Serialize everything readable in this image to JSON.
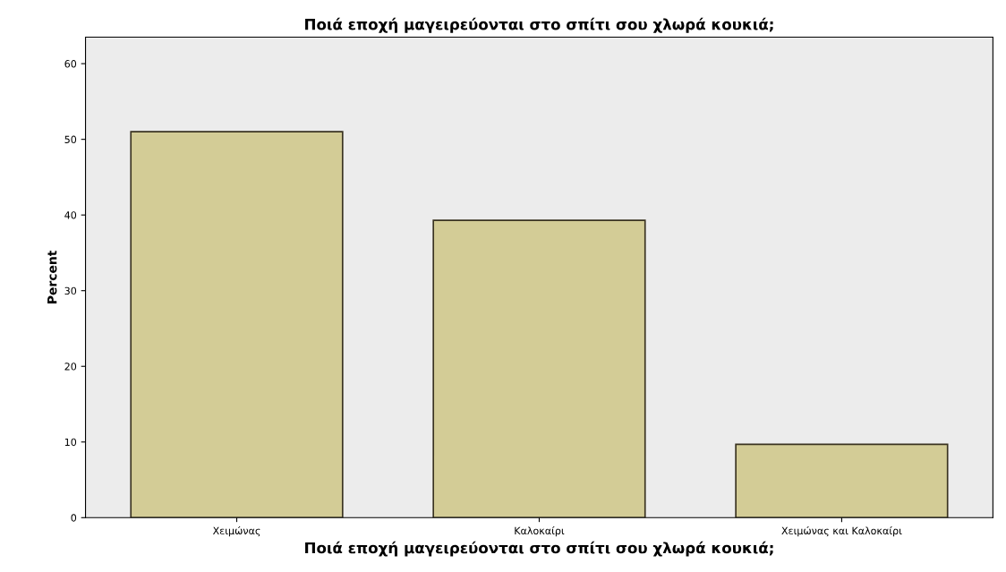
{
  "chart_data": {
    "type": "bar",
    "title": "Ποιά εποχή μαγειρεύονται στο σπίτι σου χλωρά κουκιά;",
    "xlabel": "Ποιά εποχή μαγειρεύονται στο σπίτι σου χλωρά κουκιά;",
    "ylabel": "Percent",
    "categories": [
      "Χειμώνας",
      "Καλοκαίρι",
      "Χειμώνας και Καλοκαίρι"
    ],
    "values": [
      51.0,
      39.3,
      9.7
    ],
    "color": "#d3cc96",
    "ylim": [
      0,
      63.5
    ],
    "yticks": [
      0,
      10,
      20,
      30,
      40,
      50,
      60
    ],
    "grid": false
  }
}
